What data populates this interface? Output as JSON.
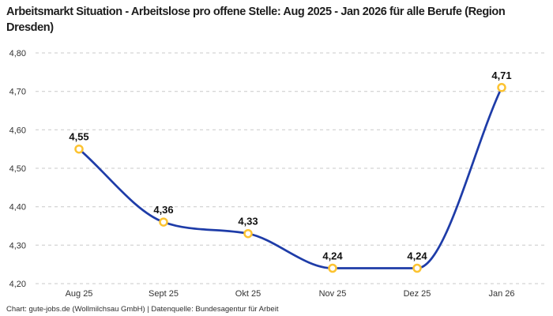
{
  "header": {
    "title": "Arbeitsmarkt Situation - Arbeitslose pro offene Stelle: Aug 2025 - Jan 2026 für alle Berufe (Region Dresden)"
  },
  "footer": {
    "attribution": "Chart: gute-jobs.de (Wollmilchsau GmbH) | Datenquelle: Bundesagentur für Arbeit"
  },
  "chart_data": {
    "type": "line",
    "title": "Arbeitsmarkt Situation - Arbeitslose pro offene Stelle: Aug 2025 - Jan 2026 für alle Berufe (Region Dresden)",
    "categories": [
      "Aug 25",
      "Sept 25",
      "Okt 25",
      "Nov 25",
      "Dez 25",
      "Jan 26"
    ],
    "values": [
      4.55,
      4.36,
      4.33,
      4.24,
      4.24,
      4.71
    ],
    "value_labels": [
      "4,55",
      "4,36",
      "4,33",
      "4,24",
      "4,24",
      "4,71"
    ],
    "xlabel": "",
    "ylabel": "",
    "ylim": [
      4.2,
      4.8
    ],
    "yticks": [
      4.2,
      4.3,
      4.4,
      4.5,
      4.6,
      4.7,
      4.8
    ],
    "ytick_labels": [
      "4,20",
      "4,30",
      "4,40",
      "4,50",
      "4,60",
      "4,70",
      "4,80"
    ],
    "grid": "horizontal-dashed",
    "legend": "none",
    "curve": "monotone",
    "colors": {
      "line": "#1e3ca8",
      "marker_stroke": "#fcc331",
      "marker_fill": "#ffffff",
      "grid": "#c9c9c9",
      "text": "#1d1d1d"
    }
  }
}
